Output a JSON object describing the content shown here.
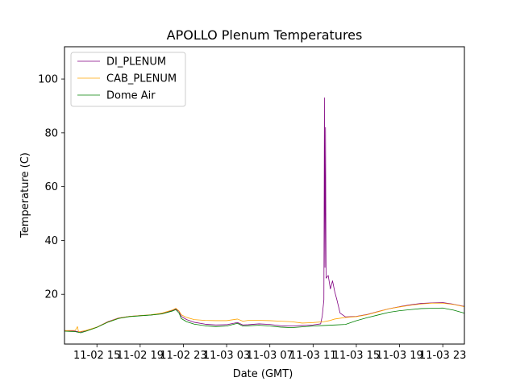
{
  "chart_data": {
    "type": "line",
    "title": "APOLLO Plenum Temperatures",
    "xlabel": "Date (GMT)",
    "ylabel": "Temperature (C)",
    "x_unit": "hours since 11-02 12:00 GMT",
    "xlim": [
      0,
      37
    ],
    "ylim": [
      1.5,
      112
    ],
    "x_ticks": [
      {
        "value": 3,
        "label": "11-02 15"
      },
      {
        "value": 7,
        "label": "11-02 19"
      },
      {
        "value": 11,
        "label": "11-02 23"
      },
      {
        "value": 15,
        "label": "11-03 03"
      },
      {
        "value": 19,
        "label": "11-03 07"
      },
      {
        "value": 23,
        "label": "11-03 11"
      },
      {
        "value": 27,
        "label": "11-03 15"
      },
      {
        "value": 31,
        "label": "11-03 19"
      },
      {
        "value": 35,
        "label": "11-03 23"
      }
    ],
    "y_ticks": [
      {
        "value": 20,
        "label": "20"
      },
      {
        "value": 40,
        "label": "40"
      },
      {
        "value": 60,
        "label": "60"
      },
      {
        "value": 80,
        "label": "80"
      },
      {
        "value": 100,
        "label": "100"
      }
    ],
    "legend_position": "top-left",
    "grid": false,
    "series": [
      {
        "name": "DI_PLENUM",
        "color": "#800080",
        "points": [
          [
            0,
            6.5
          ],
          [
            1,
            6.3
          ],
          [
            1.5,
            6.0
          ],
          [
            2,
            6.5
          ],
          [
            3,
            7.8
          ],
          [
            4,
            9.8
          ],
          [
            5,
            11.2
          ],
          [
            6,
            11.8
          ],
          [
            7,
            12.1
          ],
          [
            8,
            12.3
          ],
          [
            9,
            12.8
          ],
          [
            10,
            14.0
          ],
          [
            10.3,
            14.5
          ],
          [
            10.6,
            13.6
          ],
          [
            10.8,
            11.8
          ],
          [
            11.3,
            10.6
          ],
          [
            12,
            9.6
          ],
          [
            13,
            8.9
          ],
          [
            14,
            8.6
          ],
          [
            15,
            8.7
          ],
          [
            16,
            9.5
          ],
          [
            16.5,
            8.6
          ],
          [
            17,
            8.7
          ],
          [
            18,
            9.0
          ],
          [
            19,
            8.8
          ],
          [
            20,
            8.3
          ],
          [
            21,
            8.2
          ],
          [
            22,
            8.4
          ],
          [
            23,
            8.6
          ],
          [
            23.7,
            9.0
          ],
          [
            23.85,
            12.0
          ],
          [
            24.0,
            18.0
          ],
          [
            24.05,
            93.0
          ],
          [
            24.1,
            30.0
          ],
          [
            24.15,
            82.0
          ],
          [
            24.2,
            26.0
          ],
          [
            24.4,
            27.0
          ],
          [
            24.6,
            22.0
          ],
          [
            24.8,
            25.0
          ],
          [
            25.0,
            21.0
          ],
          [
            25.2,
            18.0
          ],
          [
            25.5,
            13.0
          ],
          [
            26,
            11.6
          ],
          [
            27,
            11.8
          ],
          [
            28,
            12.5
          ],
          [
            29,
            13.6
          ],
          [
            30,
            14.6
          ],
          [
            31,
            15.4
          ],
          [
            32,
            16.1
          ],
          [
            33,
            16.6
          ],
          [
            34,
            16.8
          ],
          [
            35,
            16.9
          ],
          [
            36,
            16.3
          ],
          [
            37,
            15.5
          ]
        ]
      },
      {
        "name": "CAB_PLENUM",
        "color": "#ffa500",
        "points": [
          [
            0,
            6.5
          ],
          [
            1,
            6.6
          ],
          [
            1.2,
            8.0
          ],
          [
            1.3,
            6.0
          ],
          [
            2,
            6.6
          ],
          [
            3,
            7.8
          ],
          [
            4,
            9.7
          ],
          [
            5,
            11.1
          ],
          [
            6,
            11.8
          ],
          [
            7,
            12.1
          ],
          [
            8,
            12.4
          ],
          [
            9,
            13.0
          ],
          [
            10,
            14.2
          ],
          [
            10.3,
            14.8
          ],
          [
            10.6,
            13.8
          ],
          [
            10.8,
            12.4
          ],
          [
            11.3,
            11.4
          ],
          [
            12,
            10.6
          ],
          [
            13,
            10.3
          ],
          [
            14,
            10.2
          ],
          [
            15,
            10.2
          ],
          [
            16,
            10.8
          ],
          [
            16.5,
            10.0
          ],
          [
            17,
            10.3
          ],
          [
            18,
            10.3
          ],
          [
            19,
            10.2
          ],
          [
            20,
            10.0
          ],
          [
            21,
            9.8
          ],
          [
            22,
            9.3
          ],
          [
            23,
            9.5
          ],
          [
            24,
            9.8
          ],
          [
            24.5,
            10.2
          ],
          [
            25,
            10.8
          ],
          [
            26,
            11.4
          ],
          [
            27,
            11.7
          ],
          [
            28,
            12.4
          ],
          [
            29,
            13.5
          ],
          [
            30,
            14.6
          ],
          [
            31,
            15.3
          ],
          [
            32,
            15.9
          ],
          [
            33,
            16.4
          ],
          [
            34,
            16.7
          ],
          [
            35,
            16.7
          ],
          [
            36,
            16.2
          ],
          [
            37,
            15.4
          ]
        ]
      },
      {
        "name": "Dome Air",
        "color": "#008000",
        "points": [
          [
            0,
            6.3
          ],
          [
            1,
            6.1
          ],
          [
            1.5,
            5.7
          ],
          [
            2,
            6.3
          ],
          [
            3,
            7.7
          ],
          [
            4,
            9.6
          ],
          [
            5,
            11.0
          ],
          [
            6,
            11.7
          ],
          [
            7,
            12.0
          ],
          [
            8,
            12.3
          ],
          [
            9,
            12.7
          ],
          [
            10,
            13.8
          ],
          [
            10.3,
            14.3
          ],
          [
            10.6,
            13.0
          ],
          [
            10.8,
            11.0
          ],
          [
            11.3,
            9.8
          ],
          [
            12,
            8.9
          ],
          [
            13,
            8.3
          ],
          [
            14,
            8.0
          ],
          [
            15,
            8.2
          ],
          [
            16,
            9.2
          ],
          [
            16.5,
            8.2
          ],
          [
            17,
            8.3
          ],
          [
            18,
            8.5
          ],
          [
            19,
            8.2
          ],
          [
            20,
            7.8
          ],
          [
            21,
            7.6
          ],
          [
            22,
            7.9
          ],
          [
            23,
            8.2
          ],
          [
            24,
            8.4
          ],
          [
            25,
            8.6
          ],
          [
            26,
            8.8
          ],
          [
            27,
            10.2
          ],
          [
            28,
            11.3
          ],
          [
            29,
            12.3
          ],
          [
            30,
            13.3
          ],
          [
            31,
            13.9
          ],
          [
            32,
            14.3
          ],
          [
            33,
            14.7
          ],
          [
            34,
            14.8
          ],
          [
            35,
            14.9
          ],
          [
            35.5,
            14.5
          ],
          [
            36,
            14.1
          ],
          [
            37,
            13.0
          ]
        ]
      }
    ]
  }
}
